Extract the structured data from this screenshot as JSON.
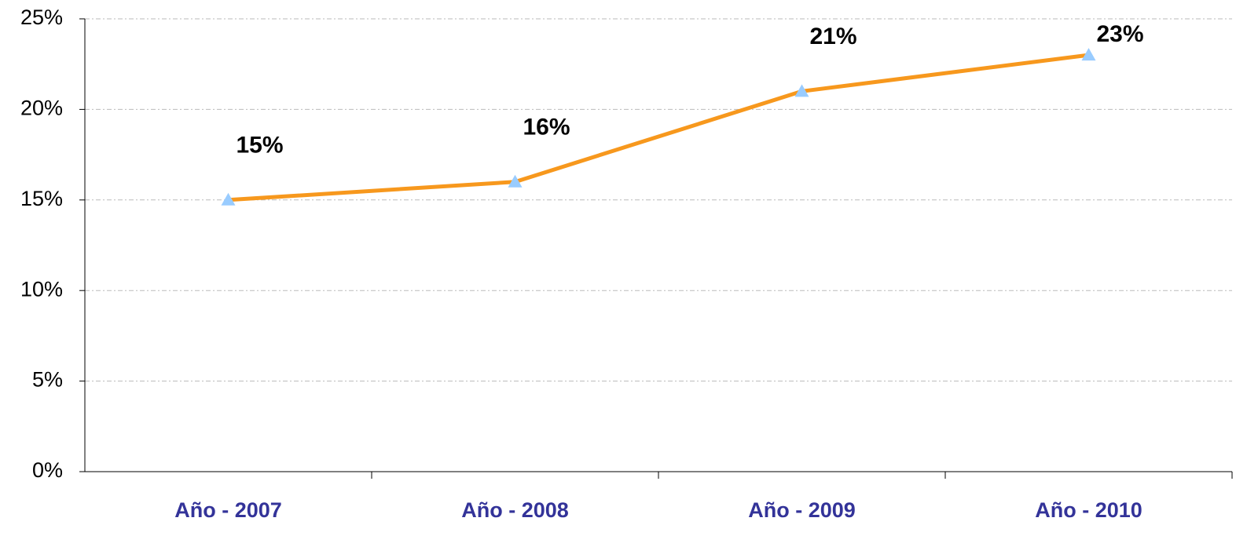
{
  "chart_data": {
    "type": "line",
    "categories": [
      "Año - 2007",
      "Año - 2008",
      "Año - 2009",
      "Año - 2010"
    ],
    "series": [
      {
        "color": "#f7981d",
        "marker_color": "#99ccff",
        "values": [
          15,
          16,
          21,
          23
        ],
        "value_labels": [
          "15%",
          "16%",
          "21%",
          "23%"
        ]
      }
    ],
    "ylim": [
      0,
      25
    ],
    "yticks": [
      {
        "value": 0,
        "label": "0%"
      },
      {
        "value": 5,
        "label": "5%"
      },
      {
        "value": 10,
        "label": "10%"
      },
      {
        "value": 15,
        "label": "15%"
      },
      {
        "value": 20,
        "label": "20%"
      },
      {
        "value": 25,
        "label": "25%"
      }
    ],
    "grid": true
  }
}
